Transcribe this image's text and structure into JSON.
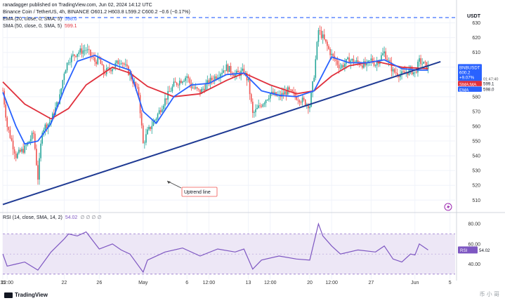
{
  "header": {
    "title_line": "ranadagger published on TradingView.com, Jun 02, 2024 14:12 UTC",
    "symbol_line": "Binance Coin / TetherUS, 4h, BINANCE  O601.2  H603.8  L599.2  C600.2  −0.6 (−0.17%)",
    "ema_label": "EMA (20, close, 0, SMA, 5)",
    "ema_value": "598.0",
    "sma_label": "SMA (50, close, 0, SMA, 5)",
    "sma_value": "599.1",
    "rsi_label": "RSI (14, close, SMA, 14, 2)",
    "rsi_value": "54.02",
    "rsi_extra": "∅ ∅ ∅ ∅"
  },
  "colors": {
    "up": "#26a69a",
    "down": "#ef5350",
    "ema": "#2962ff",
    "sma": "#e0303c",
    "trendline": "#1f3a93",
    "dashed": "#2962ff",
    "rsi": "#7e57c2",
    "rsi_band": "#ede7f6",
    "label_price": "#2962ff",
    "label_sma": "#e0303c",
    "label_ema": "#2962ff"
  },
  "branding": {
    "logo_text": "TradingView",
    "watermark": "币 小 哥"
  },
  "chart_data": [
    {
      "type": "candlestick",
      "symbol": "BNBUSDT",
      "quote": "USDT",
      "timeframe": "4h",
      "ylim": [
        503,
        636
      ],
      "y_ticks": [
        510,
        520,
        530,
        540,
        550,
        560,
        570,
        580,
        590,
        600,
        610,
        620,
        630
      ],
      "x_ticks": [
        "15",
        "12:00",
        "22",
        "26",
        "May",
        "6",
        "12:00",
        "13",
        "12:00",
        "20",
        "12:00",
        "27",
        "Jun",
        "5"
      ],
      "annotation": "Uptrend line",
      "last_price": 600.2,
      "change_label": "+9.07%",
      "countdown": "01:47:40",
      "resistance_level": 633.6,
      "trendline": {
        "start": {
          "date": "Apr 15",
          "price": 507
        },
        "end": {
          "date": "Jun 02",
          "price": 600
        }
      },
      "labels": [
        {
          "name": "BNBUSDT",
          "value": 600.2
        },
        {
          "name": "SMA:MA",
          "value": 599.1
        },
        {
          "name": "EMA",
          "value": 598.0
        }
      ],
      "close_path": [
        [
          "Apr 15 00:00",
          584
        ],
        [
          "Apr 15 12:00",
          560
        ],
        [
          "Apr 16 12:00",
          540
        ],
        [
          "Apr 17 12:00",
          545
        ],
        [
          "Apr 18 12:00",
          555
        ],
        [
          "Apr 19 00:00",
          525
        ],
        [
          "Apr 19 12:00",
          558
        ],
        [
          "Apr 20 12:00",
          564
        ],
        [
          "Apr 21 12:00",
          580
        ],
        [
          "Apr 22 00:00",
          597
        ],
        [
          "Apr 22 12:00",
          605
        ],
        [
          "Apr 23 12:00",
          610
        ],
        [
          "Apr 24 12:00",
          612
        ],
        [
          "Apr 25 12:00",
          604
        ],
        [
          "Apr 26 00:00",
          605
        ],
        [
          "Apr 26 12:00",
          596
        ],
        [
          "Apr 27 12:00",
          600
        ],
        [
          "Apr 28 12:00",
          605
        ],
        [
          "Apr 29 12:00",
          595
        ],
        [
          "Apr 30 12:00",
          582
        ],
        [
          "May 01 00:00",
          548
        ],
        [
          "May 01 12:00",
          556
        ],
        [
          "May 02 12:00",
          566
        ],
        [
          "May 03 12:00",
          578
        ],
        [
          "May 04 12:00",
          588
        ],
        [
          "May 05 12:00",
          592
        ],
        [
          "May 06 00:00",
          594
        ],
        [
          "May 06 12:00",
          587
        ],
        [
          "May 07 12:00",
          583
        ],
        [
          "May 08 12:00",
          590
        ],
        [
          "May 09 12:00",
          595
        ],
        [
          "May 10 12:00",
          600
        ],
        [
          "May 11 12:00",
          595
        ],
        [
          "May 12 12:00",
          597
        ],
        [
          "May 13 00:00",
          590
        ],
        [
          "May 13 12:00",
          568
        ],
        [
          "May 14 12:00",
          575
        ],
        [
          "May 15 12:00",
          582
        ],
        [
          "May 16 12:00",
          580
        ],
        [
          "May 17 12:00",
          584
        ],
        [
          "May 18 12:00",
          580
        ],
        [
          "May 19 12:00",
          576
        ],
        [
          "May 20 00:00",
          574
        ],
        [
          "May 20 12:00",
          595
        ],
        [
          "May 21 00:00",
          625
        ],
        [
          "May 21 12:00",
          620
        ],
        [
          "May 22 12:00",
          608
        ],
        [
          "May 23 12:00",
          600
        ],
        [
          "May 24 12:00",
          605
        ],
        [
          "May 25 12:00",
          603
        ],
        [
          "May 26 12:00",
          601
        ],
        [
          "May 27 00:00",
          605
        ],
        [
          "May 27 12:00",
          602
        ],
        [
          "May 28 12:00",
          610
        ],
        [
          "May 29 12:00",
          597
        ],
        [
          "May 30 12:00",
          595
        ],
        [
          "May 31 12:00",
          598
        ],
        [
          "Jun 01 00:00",
          596
        ],
        [
          "Jun 01 12:00",
          604
        ],
        [
          "Jun 02 12:00",
          600
        ]
      ],
      "ema20_path": [
        [
          "Apr 15 00:00",
          583
        ],
        [
          "Apr 16 12:00",
          560
        ],
        [
          "Apr 17 12:00",
          548
        ],
        [
          "Apr 19 00:00",
          550
        ],
        [
          "Apr 20 12:00",
          562
        ],
        [
          "Apr 22 00:00",
          585
        ],
        [
          "Apr 23 12:00",
          604
        ],
        [
          "Apr 25 12:00",
          608
        ],
        [
          "Apr 27 12:00",
          602
        ],
        [
          "Apr 29 12:00",
          598
        ],
        [
          "May 01 00:00",
          570
        ],
        [
          "May 02 12:00",
          562
        ],
        [
          "May 04 12:00",
          580
        ],
        [
          "May 06 12:00",
          588
        ],
        [
          "May 08 12:00",
          589
        ],
        [
          "May 10 12:00",
          595
        ],
        [
          "May 12 12:00",
          596
        ],
        [
          "May 14 12:00",
          584
        ],
        [
          "May 16 12:00",
          581
        ],
        [
          "May 18 12:00",
          580
        ],
        [
          "May 20 12:00",
          584
        ],
        [
          "May 22 12:00",
          607
        ],
        [
          "May 24 12:00",
          603
        ],
        [
          "May 26 12:00",
          603
        ],
        [
          "May 28 12:00",
          605
        ],
        [
          "May 30 12:00",
          599
        ],
        [
          "Jun 01 12:00",
          598
        ],
        [
          "Jun 02 12:00",
          598
        ]
      ],
      "sma50_path": [
        [
          "Apr 15 00:00",
          590
        ],
        [
          "Apr 17 12:00",
          575
        ],
        [
          "Apr 20 12:00",
          565
        ],
        [
          "Apr 22 12:00",
          572
        ],
        [
          "Apr 24 12:00",
          588
        ],
        [
          "Apr 27 12:00",
          600
        ],
        [
          "Apr 29 12:00",
          596
        ],
        [
          "May 01 12:00",
          587
        ],
        [
          "May 04 12:00",
          580
        ],
        [
          "May 07 12:00",
          582
        ],
        [
          "May 10 12:00",
          591
        ],
        [
          "May 12 12:00",
          596
        ],
        [
          "May 15 12:00",
          588
        ],
        [
          "May 18 12:00",
          582
        ],
        [
          "May 20 12:00",
          584
        ],
        [
          "May 22 12:00",
          594
        ],
        [
          "May 24 12:00",
          601
        ],
        [
          "May 27 12:00",
          604
        ],
        [
          "May 30 12:00",
          600
        ],
        [
          "Jun 02 12:00",
          599
        ]
      ]
    },
    {
      "type": "line",
      "name": "RSI",
      "ylim": [
        25,
        85
      ],
      "y_ticks": [
        40,
        60,
        80
      ],
      "band": [
        30,
        70
      ],
      "midline": 50,
      "value_label": 54.02,
      "path": [
        [
          "Apr 15 00:00",
          50
        ],
        [
          "Apr 15 12:00",
          38
        ],
        [
          "Apr 16 12:00",
          40
        ],
        [
          "Apr 17 12:00",
          42
        ],
        [
          "Apr 19 00:00",
          34
        ],
        [
          "Apr 20 12:00",
          52
        ],
        [
          "Apr 22 00:00",
          65
        ],
        [
          "Apr 22 12:00",
          70
        ],
        [
          "Apr 23 12:00",
          68
        ],
        [
          "Apr 24 12:00",
          72
        ],
        [
          "Apr 26 00:00",
          55
        ],
        [
          "Apr 27 12:00",
          60
        ],
        [
          "Apr 28 12:00",
          54
        ],
        [
          "Apr 29 12:00",
          50
        ],
        [
          "May 01 00:00",
          32
        ],
        [
          "May 01 12:00",
          44
        ],
        [
          "May 03 12:00",
          52
        ],
        [
          "May 05 12:00",
          56
        ],
        [
          "May 07 12:00",
          48
        ],
        [
          "May 09 12:00",
          55
        ],
        [
          "May 11 12:00",
          52
        ],
        [
          "May 12 12:00",
          55
        ],
        [
          "May 13 12:00",
          35
        ],
        [
          "May 14 12:00",
          44
        ],
        [
          "May 16 12:00",
          48
        ],
        [
          "May 18 12:00",
          45
        ],
        [
          "May 20 00:00",
          44
        ],
        [
          "May 20 12:00",
          62
        ],
        [
          "May 21 00:00",
          80
        ],
        [
          "May 21 12:00",
          68
        ],
        [
          "May 22 12:00",
          58
        ],
        [
          "May 23 12:00",
          50
        ],
        [
          "May 25 12:00",
          54
        ],
        [
          "May 27 12:00",
          52
        ],
        [
          "May 28 12:00",
          58
        ],
        [
          "May 29 12:00",
          45
        ],
        [
          "May 30 12:00",
          42
        ],
        [
          "May 31 12:00",
          50
        ],
        [
          "Jun 01 00:00",
          49
        ],
        [
          "Jun 01 12:00",
          60
        ],
        [
          "Jun 02 12:00",
          54
        ]
      ]
    }
  ]
}
